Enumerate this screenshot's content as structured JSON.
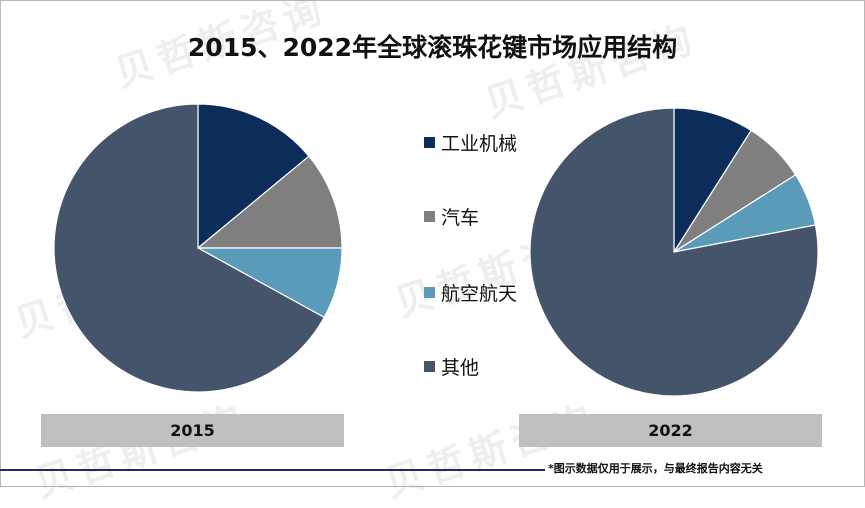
{
  "title": "2015、2022年全球滚珠花键市场应用结构",
  "footer_note": "*图示数据仅用于展示，与最终报告内容无关",
  "watermark": "贝哲斯咨询",
  "colors": {
    "工业机械": "#0c2d5a",
    "汽车": "#7f7f7f",
    "航空航天": "#5b9bba",
    "其他": "#44546a"
  },
  "chart_data": [
    {
      "type": "pie",
      "label": "2015",
      "categories": [
        "工业机械",
        "汽车",
        "航空航天",
        "其他"
      ],
      "values": [
        14,
        11,
        8,
        67
      ]
    },
    {
      "type": "pie",
      "label": "2022",
      "categories": [
        "工业机械",
        "汽车",
        "航空航天",
        "其他"
      ],
      "values": [
        9,
        7,
        6,
        78
      ]
    }
  ],
  "legend": [
    "工业机械",
    "汽车",
    "航空航天",
    "其他"
  ]
}
